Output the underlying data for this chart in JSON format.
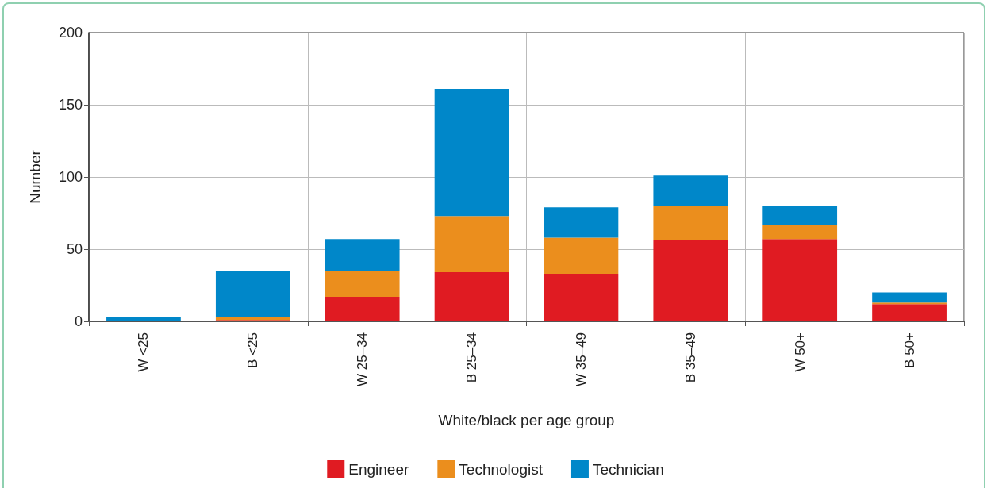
{
  "chart_data": {
    "type": "bar",
    "stacked": true,
    "xlabel": "White/black per age group",
    "ylabel": "Number",
    "categories": [
      "W <25",
      "B <25",
      "W 25–34",
      "B 25–34",
      "W 35–49",
      "B 35–49",
      "W 50+",
      "B 50+"
    ],
    "series": [
      {
        "name": "Engineer",
        "color": "#e01b22",
        "values": [
          0,
          1,
          17,
          34,
          33,
          56,
          57,
          12
        ]
      },
      {
        "name": "Technologist",
        "color": "#eb8e1d",
        "values": [
          0,
          2,
          18,
          39,
          25,
          24,
          10,
          1
        ]
      },
      {
        "name": "Technician",
        "color": "#0087c9",
        "values": [
          3,
          32,
          22,
          88,
          21,
          21,
          13,
          7
        ]
      }
    ],
    "ylim": [
      0,
      200
    ],
    "yticks": [
      0,
      50,
      100,
      150,
      200
    ],
    "grid": true,
    "legend": "bottom"
  }
}
